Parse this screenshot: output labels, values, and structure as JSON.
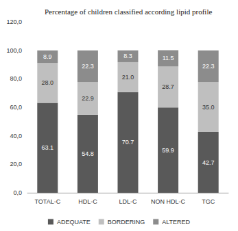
{
  "chart_data": {
    "type": "bar",
    "title": "Percentage of children classified according lipid profile",
    "categories": [
      "TOTAL-C",
      "HDL-C",
      "LDL-C",
      "NON HDL-C",
      "TGC"
    ],
    "series": [
      {
        "name": "ADEQUATE",
        "color": "#595959",
        "values": [
          63.1,
          54.8,
          70.7,
          59.9,
          42.7
        ],
        "value_labels": [
          "63.1",
          "54.8",
          "70.7",
          "59.9",
          "42.7"
        ]
      },
      {
        "name": "BORDERING",
        "color": "#bfbfbf",
        "values": [
          28.0,
          22.9,
          21.0,
          28.7,
          35.0
        ],
        "value_labels": [
          "28.0",
          "22.9",
          "21.0",
          "28.7",
          "35.0"
        ]
      },
      {
        "name": "ALTERED",
        "color": "#8c8c8c",
        "values": [
          8.9,
          22.3,
          8.3,
          11.5,
          22.3
        ],
        "value_labels": [
          "8.9",
          "22.3",
          "8.3",
          "11.5",
          "22.3"
        ]
      }
    ],
    "ylim": [
      0,
      120
    ],
    "yticks": [
      {
        "value": 0,
        "label": "0,0"
      },
      {
        "value": 20,
        "label": "20,0"
      },
      {
        "value": 40,
        "label": "40,0"
      },
      {
        "value": 60,
        "label": "60,0"
      },
      {
        "value": 80,
        "label": "80,0"
      },
      {
        "value": 100,
        "label": "100,0"
      },
      {
        "value": 120,
        "label": "120,0"
      }
    ],
    "stacked": true,
    "data_labels": true,
    "legend": "bottom",
    "grid": false
  }
}
